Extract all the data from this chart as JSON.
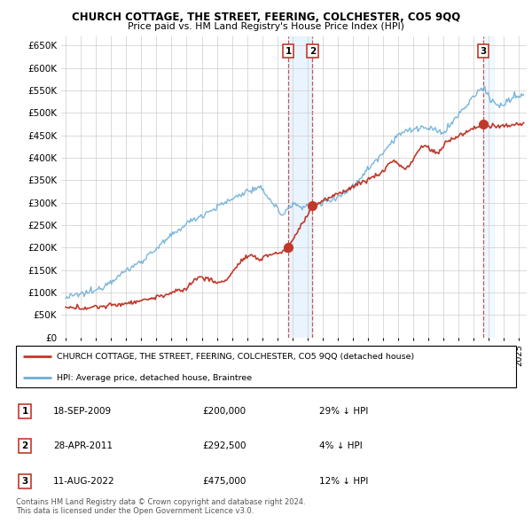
{
  "title": "CHURCH COTTAGE, THE STREET, FEERING, COLCHESTER, CO5 9QQ",
  "subtitle": "Price paid vs. HM Land Registry's House Price Index (HPI)",
  "hpi_color": "#6baed6",
  "price_color": "#c0392b",
  "background_color": "#ffffff",
  "grid_color": "#cccccc",
  "yticks": [
    0,
    50000,
    100000,
    150000,
    200000,
    250000,
    300000,
    350000,
    400000,
    450000,
    500000,
    550000,
    600000,
    650000
  ],
  "ytick_labels": [
    "£0",
    "£50K",
    "£100K",
    "£150K",
    "£200K",
    "£250K",
    "£300K",
    "£350K",
    "£400K",
    "£450K",
    "£500K",
    "£550K",
    "£600K",
    "£650K"
  ],
  "xlim_start": 1994.7,
  "xlim_end": 2025.5,
  "ylim": [
    0,
    670000
  ],
  "purchases": [
    {
      "number": 1,
      "date_float": 2009.72,
      "price": 200000,
      "date_str": "18-SEP-2009",
      "pct": "29%",
      "dir": "↓"
    },
    {
      "number": 2,
      "date_float": 2011.33,
      "price": 292500,
      "date_str": "28-APR-2011",
      "pct": "4%",
      "dir": "↓"
    },
    {
      "number": 3,
      "date_float": 2022.62,
      "price": 475000,
      "date_str": "11-AUG-2022",
      "pct": "12%",
      "dir": "↓"
    }
  ],
  "legend_line1": "CHURCH COTTAGE, THE STREET, FEERING, COLCHESTER, CO5 9QQ (detached house)",
  "legend_line2": "HPI: Average price, detached house, Braintree",
  "footer1": "Contains HM Land Registry data © Crown copyright and database right 2024.",
  "footer2": "This data is licensed under the Open Government Licence v3.0.",
  "table_rows": [
    {
      "num": "1",
      "date": "18-SEP-2009",
      "price": "£200,000",
      "pct": "29% ↓ HPI"
    },
    {
      "num": "2",
      "date": "28-APR-2011",
      "price": "£292,500",
      "pct": "4% ↓ HPI"
    },
    {
      "num": "3",
      "date": "11-AUG-2022",
      "price": "£475,000",
      "pct": "12% ↓ HPI"
    }
  ]
}
